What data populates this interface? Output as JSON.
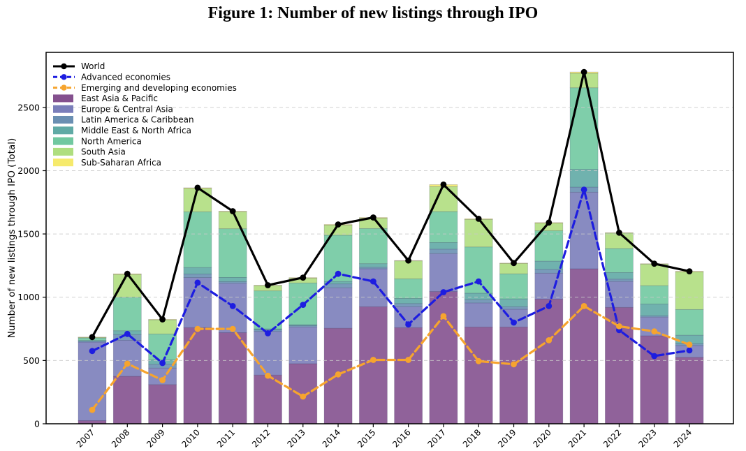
{
  "title": "Figure 1: Number of new listings through IPO",
  "y_axis": {
    "label": "Number of new listings through IPO (Total)",
    "ticks": [
      0,
      500,
      1000,
      1500,
      2000,
      2500
    ]
  },
  "x_axis": {
    "ticks": [
      "2007",
      "2008",
      "2009",
      "2010",
      "2011",
      "2012",
      "2013",
      "2014",
      "2015",
      "2016",
      "2017",
      "2018",
      "2019",
      "2020",
      "2021",
      "2022",
      "2023",
      "2024"
    ]
  },
  "colors": {
    "world_line": "#000000",
    "advanced_line": "#1d1de0",
    "emerging_line": "#f6a42e",
    "grid": "#c9c9c9",
    "axis": "#000000"
  },
  "chart_data": {
    "type": "combo_stacked_bar_line",
    "title": "Figure 1: Number of new listings through IPO",
    "xlabel": "",
    "ylabel": "Number of new listings through IPO (Total)",
    "ylim": [
      0,
      2935
    ],
    "grid": "horizontal dashed at 500/1000/1500/2000/2500",
    "legend_position": "upper-left, frameless",
    "categories": [
      "2007",
      "2008",
      "2009",
      "2010",
      "2011",
      "2012",
      "2013",
      "2014",
      "2015",
      "2016",
      "2017",
      "2018",
      "2019",
      "2020",
      "2021",
      "2022",
      "2023",
      "2024"
    ],
    "bar_series_stack_order_bottom_to_top": [
      {
        "name": "East Asia & Pacific",
        "color": "#7d4788",
        "values": [
          25,
          375,
          310,
          760,
          720,
          385,
          475,
          755,
          925,
          760,
          1045,
          765,
          765,
          985,
          1225,
          920,
          695,
          525
        ]
      },
      {
        "name": "Europe & Central Asia",
        "color": "#7377b6",
        "values": [
          620,
          285,
          130,
          395,
          390,
          345,
          290,
          320,
          300,
          165,
          300,
          190,
          140,
          205,
          605,
          205,
          148,
          93
        ]
      },
      {
        "name": "Latin America & Caribbean",
        "color": "#6289ae",
        "values": [
          8,
          45,
          30,
          28,
          13,
          12,
          10,
          30,
          12,
          25,
          35,
          25,
          20,
          30,
          40,
          18,
          10,
          14
        ]
      },
      {
        "name": "Middle East & North Africa",
        "color": "#57a5a0",
        "values": [
          5,
          30,
          35,
          52,
          33,
          8,
          8,
          20,
          28,
          40,
          52,
          52,
          62,
          65,
          140,
          52,
          93,
          68
        ]
      },
      {
        "name": "North America",
        "color": "#69c59b",
        "values": [
          20,
          265,
          205,
          440,
          385,
          300,
          330,
          365,
          278,
          155,
          245,
          365,
          198,
          240,
          645,
          190,
          145,
          203
        ]
      },
      {
        "name": "South Asia",
        "color": "#abdc78",
        "values": [
          5,
          180,
          112,
          185,
          135,
          42,
          38,
          80,
          82,
          142,
          198,
          218,
          82,
          60,
          115,
          122,
          171,
          297
        ]
      },
      {
        "name": "Sub-Saharan Africa",
        "color": "#f5e964",
        "values": [
          2,
          5,
          3,
          5,
          4,
          3,
          4,
          5,
          5,
          3,
          15,
          5,
          3,
          5,
          10,
          3,
          3,
          5
        ]
      }
    ],
    "line_series": [
      {
        "name": "World",
        "color": "#000000",
        "style": "solid",
        "marker": "circle",
        "values": [
          685,
          1185,
          825,
          1865,
          1680,
          1095,
          1155,
          1575,
          1630,
          1290,
          1890,
          1620,
          1270,
          1590,
          2780,
          1510,
          1265,
          1205
        ]
      },
      {
        "name": "Advanced economies",
        "color": "#1d1de0",
        "style": "dashed",
        "marker": "circle",
        "values": [
          575,
          710,
          480,
          1115,
          930,
          715,
          940,
          1185,
          1125,
          785,
          1040,
          1125,
          800,
          930,
          1850,
          740,
          535,
          580
        ]
      },
      {
        "name": "Emerging and developing economies",
        "color": "#f6a42e",
        "style": "dashed",
        "marker": "circle",
        "values": [
          110,
          475,
          345,
          750,
          750,
          380,
          215,
          390,
          505,
          505,
          850,
          495,
          470,
          660,
          930,
          770,
          730,
          625
        ]
      }
    ],
    "legend_order": [
      "World",
      "Advanced economies",
      "Emerging and developing economies",
      "East Asia & Pacific",
      "Europe & Central Asia",
      "Latin America & Caribbean",
      "Middle East & North Africa",
      "North America",
      "South Asia",
      "Sub-Saharan Africa"
    ]
  }
}
